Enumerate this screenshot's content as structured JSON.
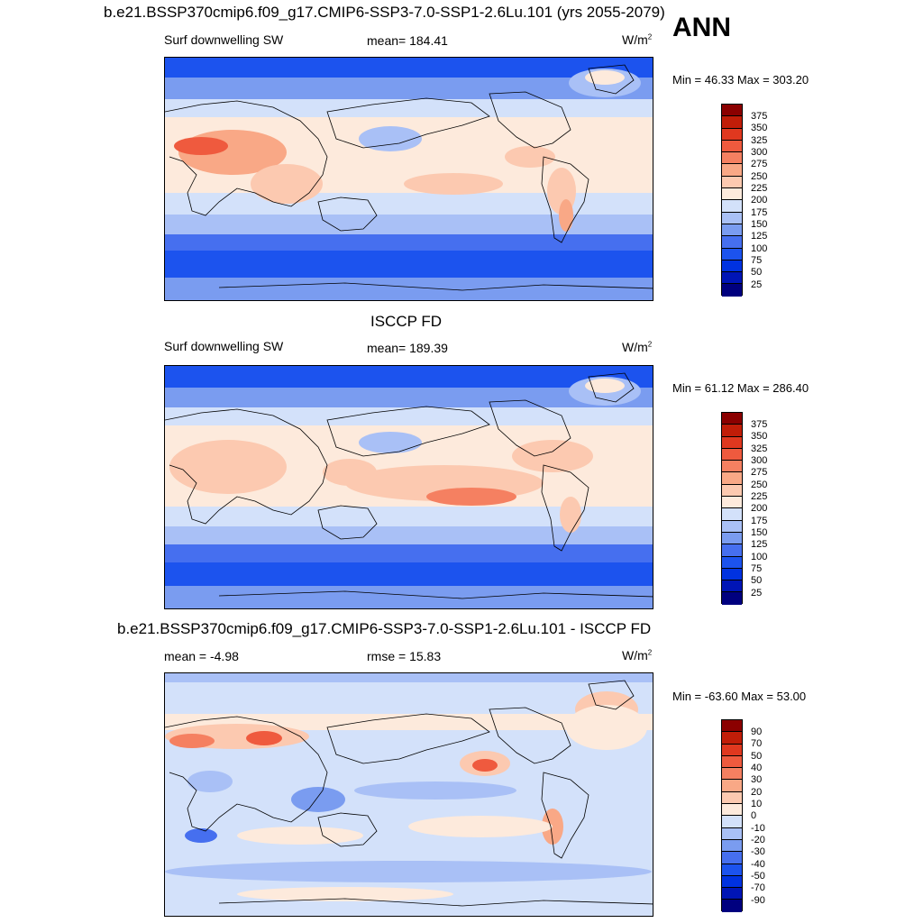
{
  "season": "ANN",
  "colors": {
    "abs_scale": [
      "#00007f",
      "#0015b6",
      "#0032e0",
      "#1c53ee",
      "#466fef",
      "#7a9cf0",
      "#a9c0f6",
      "#d3e1fa",
      "#fdeadc",
      "#fcc9b0",
      "#f9a886",
      "#f58061",
      "#ef5a3e",
      "#e0381f",
      "#c11d08",
      "#8b0000"
    ],
    "diff_scale": [
      "#00007f",
      "#0015b6",
      "#0032e0",
      "#1c53ee",
      "#466fef",
      "#7a9cf0",
      "#a9c0f6",
      "#d3e1fa",
      "#fdeadc",
      "#fcc9b0",
      "#f9a886",
      "#f58061",
      "#ef5a3e",
      "#e0381f",
      "#c11d08",
      "#8b0000"
    ]
  },
  "panels": [
    {
      "title": "b.e21.BSSP370cmip6.f09_g17.CMIP6-SSP3-7.0-SSP1-2.6Lu.101 (yrs 2055-2079)",
      "left_label": "Surf downwelling SW",
      "center_label": "mean= 184.41",
      "units": "W/m",
      "units_sup": "2",
      "minmax": "Min =  46.33 Max = 303.20",
      "ticks": [
        "375",
        "350",
        "325",
        "300",
        "275",
        "250",
        "225",
        "200",
        "175",
        "150",
        "125",
        "100",
        "75",
        "50",
        "25"
      ]
    },
    {
      "title": "ISCCP FD",
      "left_label": "Surf downwelling SW",
      "center_label": "mean= 189.39",
      "units": "W/m",
      "units_sup": "2",
      "minmax": "Min =  61.12 Max = 286.40",
      "ticks": [
        "375",
        "350",
        "325",
        "300",
        "275",
        "250",
        "225",
        "200",
        "175",
        "150",
        "125",
        "100",
        "75",
        "50",
        "25"
      ]
    },
    {
      "title": "b.e21.BSSP370cmip6.f09_g17.CMIP6-SSP3-7.0-SSP1-2.6Lu.101 - ISCCP FD",
      "left_label": "mean =  -4.98",
      "center_label": "rmse =  15.83",
      "units": "W/m",
      "units_sup": "2",
      "minmax": "Min = -63.60 Max =  53.00",
      "ticks": [
        "90",
        "70",
        "50",
        "40",
        "30",
        "20",
        "10",
        "0",
        "-10",
        "-20",
        "-30",
        "-40",
        "-50",
        "-70",
        "-90"
      ]
    }
  ]
}
